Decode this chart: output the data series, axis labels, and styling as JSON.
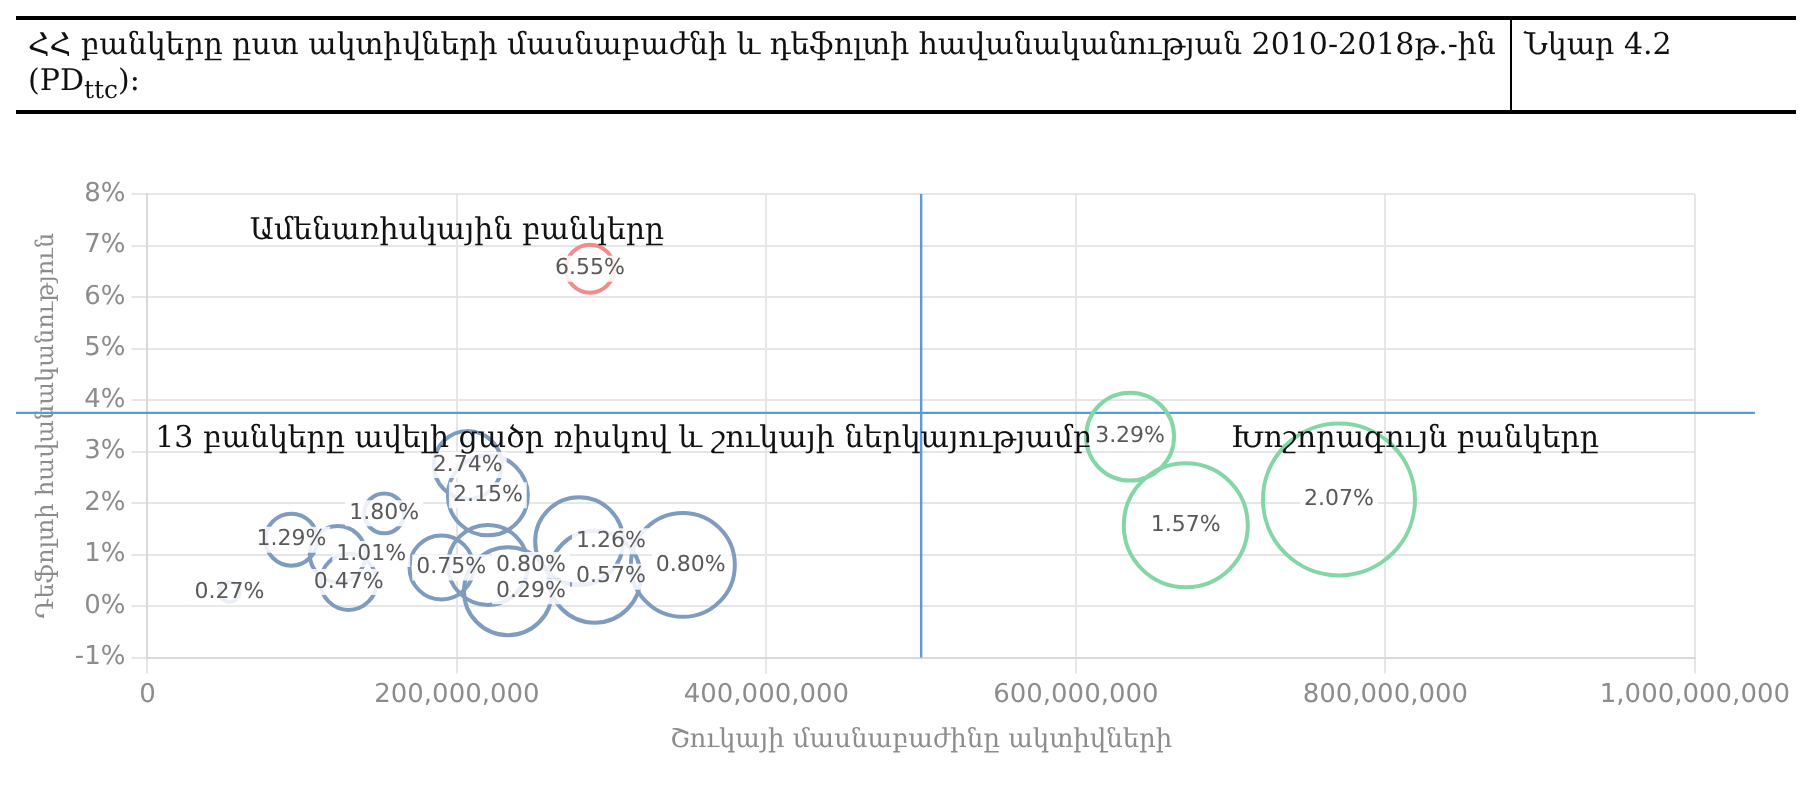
{
  "chart_data": {
    "type": "bubble",
    "title": "ՀՀ բանկերը ըստ ակտիվների մասնաբաժնի և դեֆոլտի հավանականության 2010-2018թ.-ին (PD$_{ttc}$):",
    "subtitle": "Նկար 4.2",
    "xlabel": "Շուկայի մասնաբաժինը ակտիվների",
    "ylabel": "Դեֆոլտի հավանականություն",
    "series": [
      {
        "color": "#7f9cbf",
        "x": [
          53000000,
          93000000,
          123000000,
          130000000,
          153000000,
          190000000,
          220000000,
          233000000,
          207000000,
          220000000,
          279000000,
          289000000,
          346000000
        ],
        "values": [
          0.27,
          1.29,
          1.01,
          0.47,
          1.8,
          0.75,
          0.8,
          0.29,
          2.74,
          2.15,
          1.26,
          0.57,
          0.8
        ],
        "sizes": [
          0.017,
          0.117,
          0.136,
          0.136,
          0.069,
          0.177,
          0.277,
          0.335,
          0.2,
          0.277,
          0.335,
          0.366,
          0.468
        ],
        "value_labels": [
          "0.27%",
          "1.29%",
          "1.01%",
          "0.47%",
          "1.80%",
          "0.75%",
          "0.80%",
          "0.29%",
          "2.74%",
          "2.15%",
          "1.26%",
          "0.57%",
          "0.80%"
        ]
      },
      {
        "color": "#f08c8c",
        "x": [
          286000000
        ],
        "values": [
          6.55
        ],
        "sizes": [
          0.1
        ],
        "value_labels": [
          "6.55%"
        ]
      },
      {
        "color": "#84d6a6",
        "x": [
          635000000,
          671000000,
          770000000
        ],
        "values": [
          3.29,
          1.57,
          2.07
        ],
        "sizes": [
          0.335,
          0.666,
          1
        ],
        "value_labels": [
          "3.29%",
          "1.57%",
          "2.07%"
        ]
      }
    ],
    "xlim": [
      0,
      1000000000
    ],
    "xticks": [
      0,
      {
        "value": 200000000,
        "label": "200,000,000"
      },
      {
        "value": 400000000,
        "label": "400,000,000"
      },
      {
        "value": 600000000,
        "label": "600,000,000"
      },
      {
        "value": 800000000,
        "label": "800,000,000"
      },
      {
        "value": 1000000000,
        "label": "1,000,000,000"
      }
    ],
    "ylim": [
      -1,
      8
    ],
    "yticks": [
      {
        "value": -1,
        "label": "-1%"
      },
      {
        "value": 0,
        "label": "0%"
      },
      {
        "value": 1,
        "label": "1%"
      },
      {
        "value": 2,
        "label": "2%"
      },
      {
        "value": 3,
        "label": "3%"
      },
      {
        "value": 4,
        "label": "4%"
      },
      {
        "value": 5,
        "label": "5%"
      },
      {
        "value": 6,
        "label": "6%"
      },
      {
        "value": 7,
        "label": "7%"
      },
      {
        "value": 8,
        "label": "8%"
      }
    ],
    "ref_lines": [
      {
        "axis": "x",
        "value": 500000000,
        "color": "#5b9bd5"
      },
      {
        "axis": "y",
        "value": 3.75,
        "color": "#5b9bd5"
      }
    ],
    "annotations": [
      "Ամենառիսկային բանկերը",
      "13 բանկերը ավելի ցածր ռիսկով և շուկայի ներկայությամբ",
      "Խոշորագույն բանկերը"
    ],
    "grid": true,
    "legend": false
  }
}
